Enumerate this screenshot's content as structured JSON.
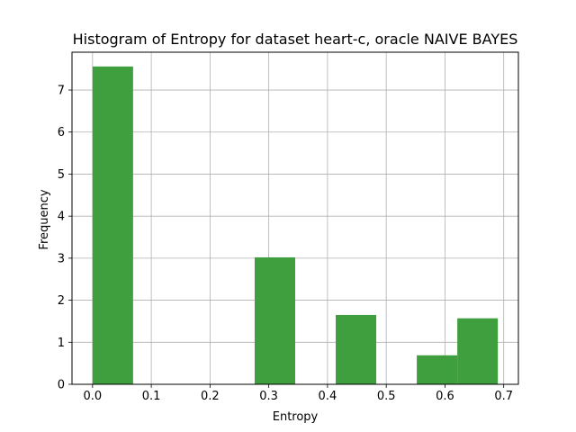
{
  "chart_data": {
    "type": "bar",
    "title": "Histogram of Entropy for dataset heart-c, oracle NAIVE BAYES",
    "xlabel": "Entropy",
    "ylabel": "Frequency",
    "xlim": [
      -0.035,
      0.725
    ],
    "ylim": [
      0,
      7.9
    ],
    "grid": true,
    "bar_color": "#3f9f3f",
    "x_ticks": [
      0.0,
      0.1,
      0.2,
      0.3,
      0.4,
      0.5,
      0.6,
      0.7
    ],
    "x_tick_labels": [
      "0.0",
      "0.1",
      "0.2",
      "0.3",
      "0.4",
      "0.5",
      "0.6",
      "0.7"
    ],
    "y_ticks": [
      0,
      1,
      2,
      3,
      4,
      5,
      6,
      7
    ],
    "y_tick_labels": [
      "0",
      "1",
      "2",
      "3",
      "4",
      "5",
      "6",
      "7"
    ],
    "bins": [
      {
        "x0": 0.0,
        "x1": 0.069,
        "value": 7.56
      },
      {
        "x0": 0.069,
        "x1": 0.138,
        "value": 0
      },
      {
        "x0": 0.138,
        "x1": 0.207,
        "value": 0
      },
      {
        "x0": 0.207,
        "x1": 0.276,
        "value": 0
      },
      {
        "x0": 0.276,
        "x1": 0.345,
        "value": 3.02
      },
      {
        "x0": 0.345,
        "x1": 0.414,
        "value": 0
      },
      {
        "x0": 0.414,
        "x1": 0.483,
        "value": 1.65
      },
      {
        "x0": 0.483,
        "x1": 0.552,
        "value": 0
      },
      {
        "x0": 0.552,
        "x1": 0.621,
        "value": 0.69
      },
      {
        "x0": 0.621,
        "x1": 0.69,
        "value": 1.57
      }
    ]
  }
}
